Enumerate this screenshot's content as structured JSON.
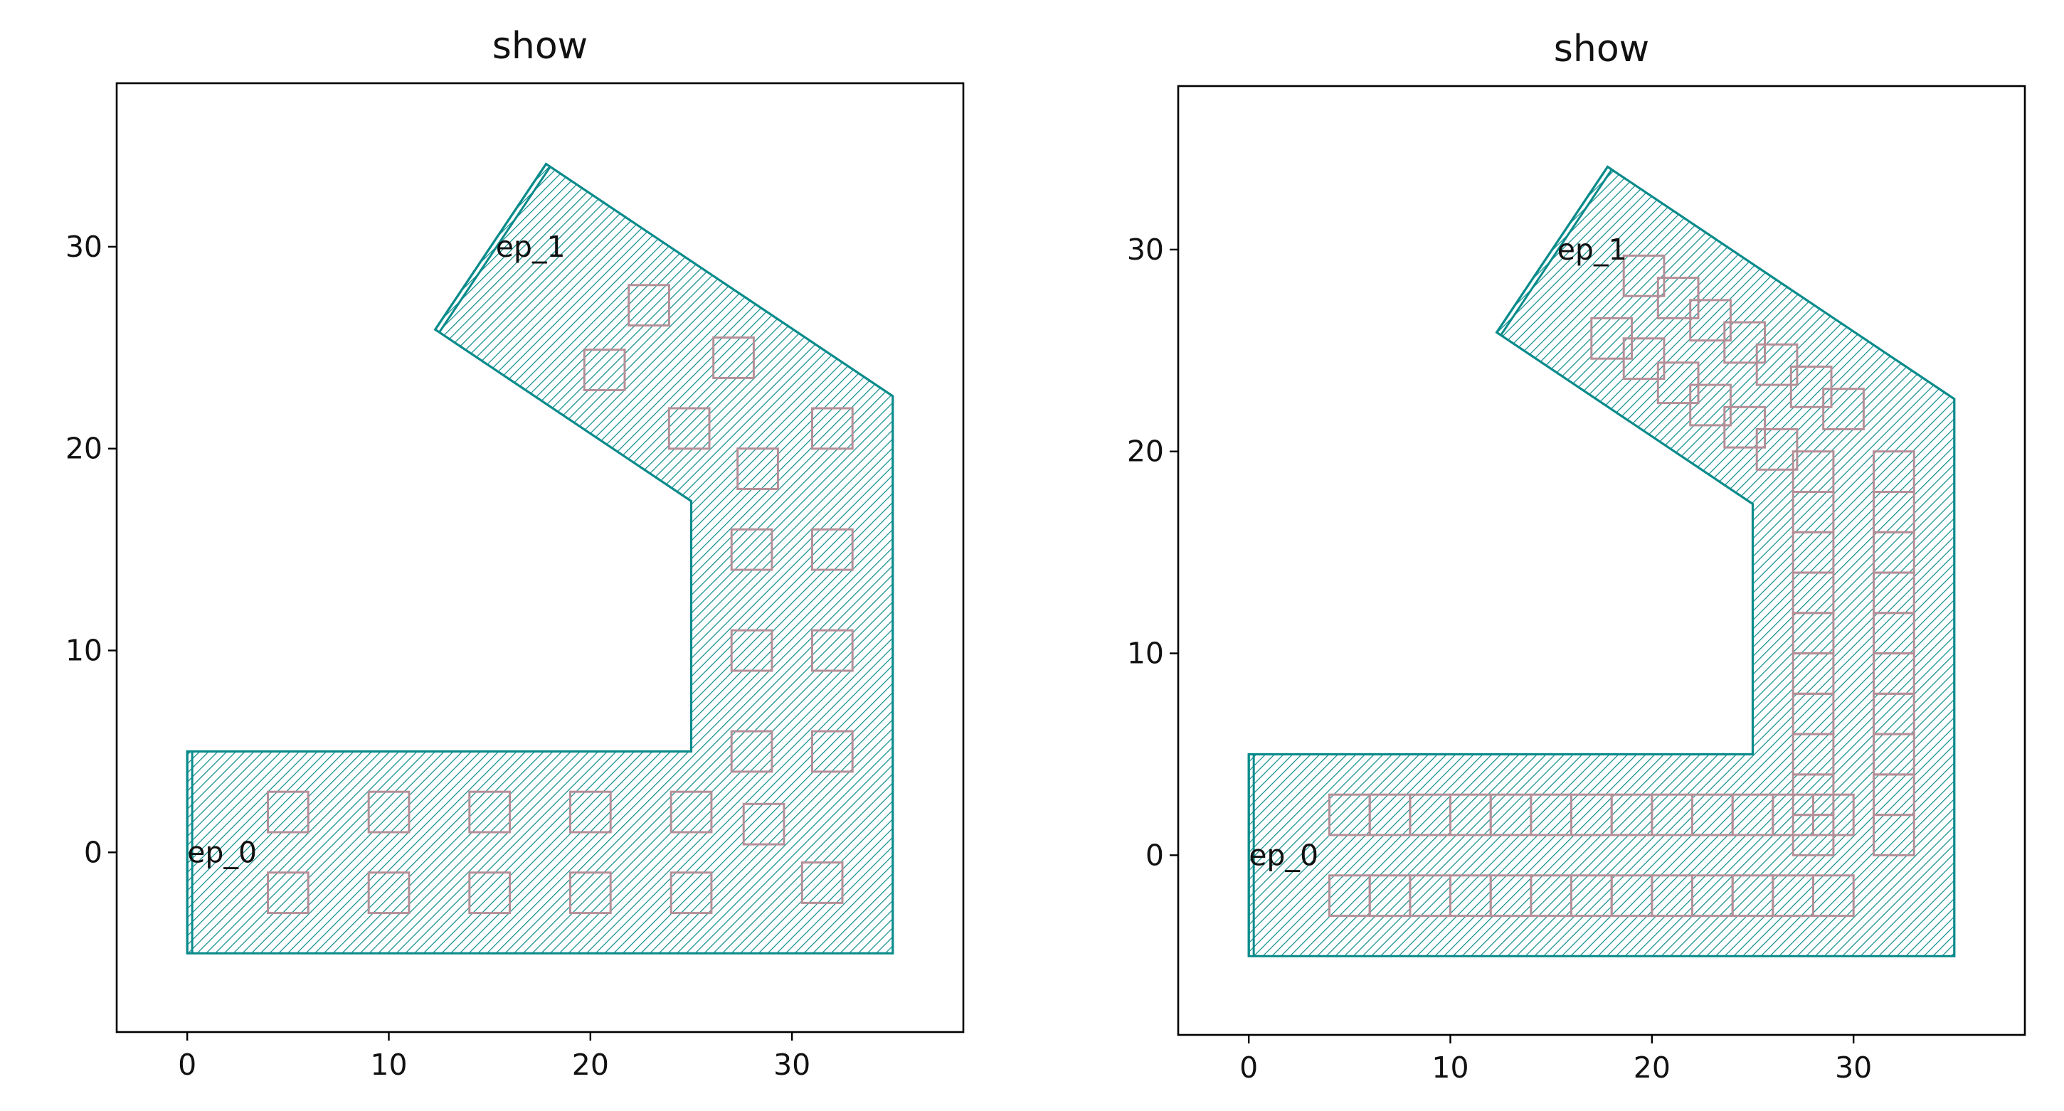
{
  "colors": {
    "region": "#0a8b8b",
    "via": "#b58f98",
    "frame": "#000000",
    "background": "#ffffff"
  },
  "chart_data": [
    {
      "type": "scatter",
      "title": "show",
      "xlabel": "",
      "ylabel": "",
      "xlim": [
        -3.5,
        38.5
      ],
      "ylim": [
        -8.9,
        38.1
      ],
      "xticks": [
        0,
        10,
        20,
        30
      ],
      "xtick_labels": [
        "0",
        "10",
        "20",
        "30"
      ],
      "yticks": [
        0,
        10,
        20,
        30
      ],
      "ytick_labels": [
        "0",
        "10",
        "20",
        "30"
      ],
      "grid": false,
      "polygon": [
        [
          0,
          -5
        ],
        [
          35,
          -5
        ],
        [
          35,
          22.6
        ],
        [
          17.8,
          34.1
        ],
        [
          12.3,
          25.9
        ],
        [
          25,
          17.4
        ],
        [
          25,
          5
        ],
        [
          0,
          5
        ]
      ],
      "ports": [
        {
          "name": "ep_0",
          "label": "ep_0",
          "x": [
            0,
            0
          ],
          "y": [
            -5,
            5
          ]
        },
        {
          "name": "ep_1",
          "label": "ep_1",
          "x": [
            12.3,
            17.8
          ],
          "y": [
            25.9,
            34.1
          ]
        }
      ],
      "via_size": 2,
      "vias": [
        [
          5,
          2
        ],
        [
          10,
          2
        ],
        [
          15,
          2
        ],
        [
          20,
          2
        ],
        [
          25,
          2
        ],
        [
          5,
          -2
        ],
        [
          10,
          -2
        ],
        [
          15,
          -2
        ],
        [
          20,
          -2
        ],
        [
          25,
          -2
        ],
        [
          28.6,
          1.4
        ],
        [
          31.5,
          -1.5
        ],
        [
          28,
          5
        ],
        [
          32,
          5
        ],
        [
          28,
          10
        ],
        [
          32,
          10
        ],
        [
          28,
          15
        ],
        [
          32,
          15
        ],
        [
          28.3,
          19
        ],
        [
          32,
          21
        ],
        [
          24.9,
          21
        ],
        [
          20.7,
          23.9
        ],
        [
          27.1,
          24.5
        ],
        [
          22.9,
          27.1
        ]
      ]
    },
    {
      "type": "scatter",
      "title": "show",
      "xlabel": "",
      "ylabel": "",
      "xlim": [
        -3.5,
        38.5
      ],
      "ylim": [
        -8.9,
        38.1
      ],
      "xticks": [
        0,
        10,
        20,
        30
      ],
      "xtick_labels": [
        "0",
        "10",
        "20",
        "30"
      ],
      "yticks": [
        0,
        10,
        20,
        30
      ],
      "ytick_labels": [
        "0",
        "10",
        "20",
        "30"
      ],
      "grid": false,
      "polygon": [
        [
          0,
          -5
        ],
        [
          35,
          -5
        ],
        [
          35,
          22.6
        ],
        [
          17.8,
          34.1
        ],
        [
          12.3,
          25.9
        ],
        [
          25,
          17.4
        ],
        [
          25,
          5
        ],
        [
          0,
          5
        ]
      ],
      "ports": [
        {
          "name": "ep_0",
          "label": "ep_0",
          "x": [
            0,
            0
          ],
          "y": [
            -5,
            5
          ]
        },
        {
          "name": "ep_1",
          "label": "ep_1",
          "x": [
            12.3,
            17.8
          ],
          "y": [
            25.9,
            34.1
          ]
        }
      ],
      "via_size": 2,
      "vias": [
        [
          5,
          2
        ],
        [
          7,
          2
        ],
        [
          9,
          2
        ],
        [
          11,
          2
        ],
        [
          13,
          2
        ],
        [
          15,
          2
        ],
        [
          17,
          2
        ],
        [
          19,
          2
        ],
        [
          21,
          2
        ],
        [
          23,
          2
        ],
        [
          25,
          2
        ],
        [
          27,
          2
        ],
        [
          29,
          2
        ],
        [
          5,
          -2
        ],
        [
          7,
          -2
        ],
        [
          9,
          -2
        ],
        [
          11,
          -2
        ],
        [
          13,
          -2
        ],
        [
          15,
          -2
        ],
        [
          17,
          -2
        ],
        [
          19,
          -2
        ],
        [
          21,
          -2
        ],
        [
          23,
          -2
        ],
        [
          25,
          -2
        ],
        [
          27,
          -2
        ],
        [
          29,
          -2
        ],
        [
          28,
          1
        ],
        [
          28,
          3
        ],
        [
          28,
          5
        ],
        [
          28,
          7
        ],
        [
          28,
          9
        ],
        [
          28,
          11
        ],
        [
          28,
          13
        ],
        [
          28,
          15
        ],
        [
          28,
          17
        ],
        [
          28,
          19
        ],
        [
          32,
          1
        ],
        [
          32,
          3
        ],
        [
          32,
          5
        ],
        [
          32,
          7
        ],
        [
          32,
          9
        ],
        [
          32,
          11
        ],
        [
          32,
          13
        ],
        [
          32,
          15
        ],
        [
          32,
          17
        ],
        [
          32,
          19
        ],
        [
          18,
          25.6
        ],
        [
          19.6,
          24.6
        ],
        [
          21.3,
          23.4
        ],
        [
          22.9,
          22.3
        ],
        [
          24.6,
          21.2
        ],
        [
          26.2,
          20.1
        ],
        [
          19.6,
          28.7
        ],
        [
          21.3,
          27.6
        ],
        [
          22.9,
          26.5
        ],
        [
          24.6,
          25.4
        ],
        [
          26.2,
          24.3
        ],
        [
          27.9,
          23.2
        ],
        [
          29.5,
          22.1
        ]
      ]
    }
  ]
}
